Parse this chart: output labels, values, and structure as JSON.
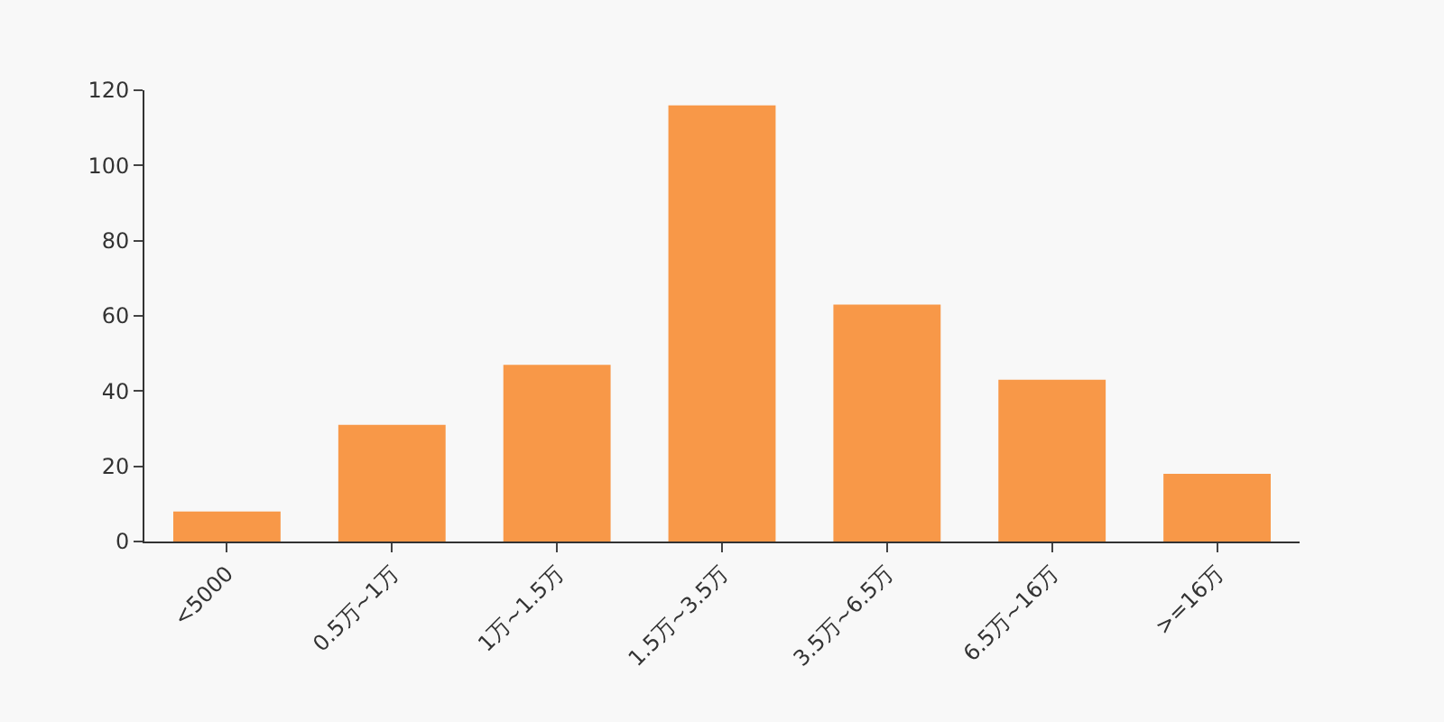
{
  "chart_data": {
    "type": "bar",
    "categories": [
      "<5000",
      "0.5万~1万",
      "1万~1.5万",
      "1.5万~3.5万",
      "3.5万~6.5万",
      "6.5万~16万",
      ">=16万"
    ],
    "values": [
      8,
      31,
      47,
      116,
      63,
      43,
      18
    ],
    "color": "#f89848",
    "ylim": [
      0,
      120
    ],
    "yticks": [
      0,
      20,
      40,
      60,
      80,
      100,
      120
    ],
    "grid": false,
    "legend": false
  }
}
